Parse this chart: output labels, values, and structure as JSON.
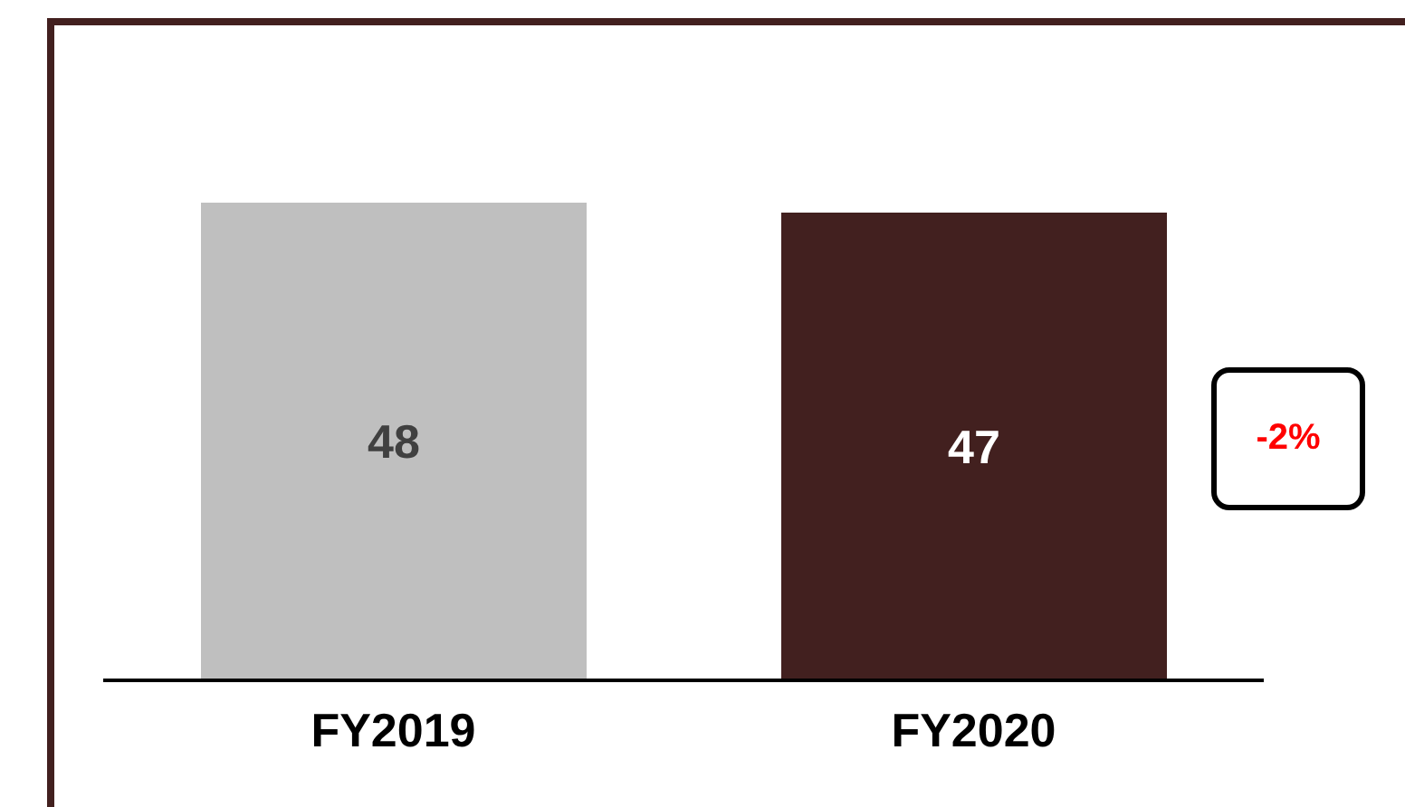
{
  "chart_data": {
    "type": "bar",
    "categories": [
      "FY2019",
      "FY2020"
    ],
    "values": [
      48,
      47
    ],
    "colors": [
      "#bfbfbf",
      "#42201f"
    ],
    "data_labels": true,
    "tick_labels": "x",
    "annotations": [
      "-2%"
    ]
  }
}
